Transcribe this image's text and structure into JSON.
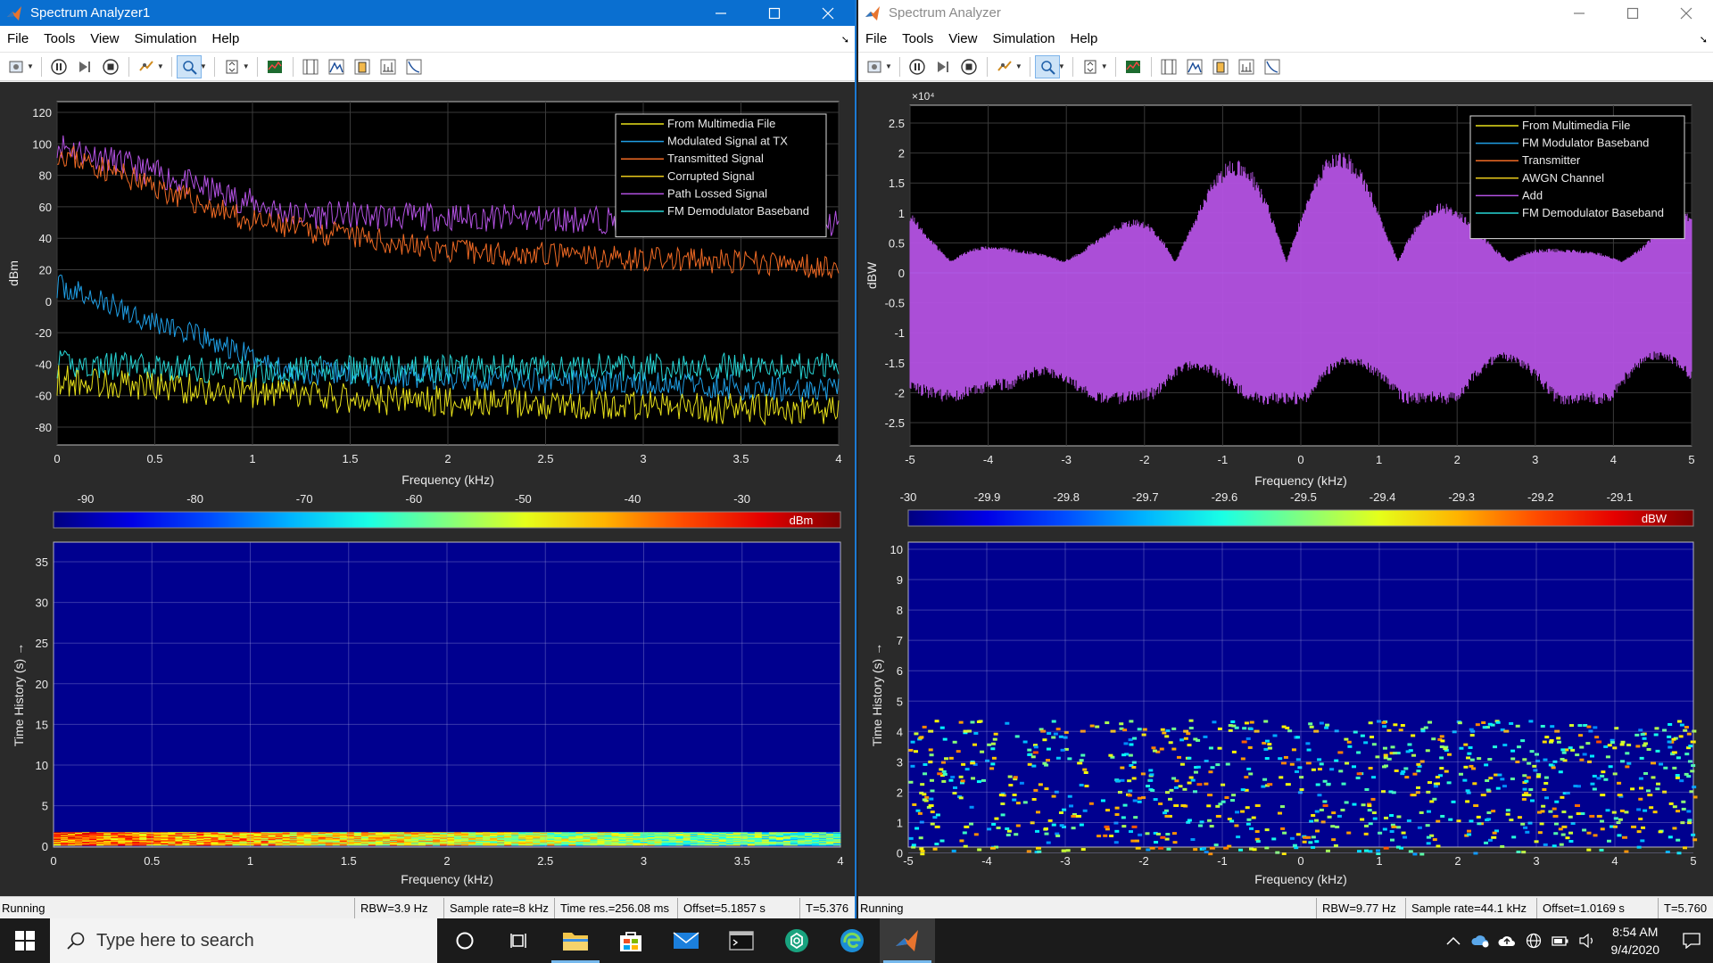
{
  "windows": [
    {
      "title": "Spectrum Analyzer1",
      "menu": [
        "File",
        "Tools",
        "View",
        "Simulation",
        "Help"
      ],
      "spectrum": {
        "ylabel": "dBm",
        "xlabel": "Frequency (kHz)",
        "yticks": [
          "120",
          "100",
          "80",
          "60",
          "40",
          "20",
          "0",
          "-20",
          "-40",
          "-60",
          "-80"
        ],
        "xticks": [
          "0",
          "0.5",
          "1",
          "1.5",
          "2",
          "2.5",
          "3",
          "3.5",
          "4"
        ],
        "legend": [
          {
            "name": "From Multimedia File",
            "color": "#e7e01a"
          },
          {
            "name": "Modulated Signal at TX",
            "color": "#1f9fe6"
          },
          {
            "name": "Transmitted Signal",
            "color": "#f06a24"
          },
          {
            "name": "Corrupted Signal",
            "color": "#e8c81a"
          },
          {
            "name": "Path Lossed Signal",
            "color": "#b452e3"
          },
          {
            "name": "FM Demodulator Baseband",
            "color": "#27d5d5"
          }
        ]
      },
      "colorbar": {
        "ticks": [
          "-90",
          "-80",
          "-70",
          "-60",
          "-50",
          "-40",
          "-30"
        ],
        "unit": "dBm"
      },
      "spectrogram": {
        "ylabel": "Time History (s) →",
        "xlabel": "Frequency (kHz)",
        "yticks": [
          "35",
          "30",
          "25",
          "20",
          "15",
          "10",
          "5",
          "0"
        ],
        "xticks": [
          "0",
          "0.5",
          "1",
          "1.5",
          "2",
          "2.5",
          "3",
          "3.5",
          "4"
        ]
      },
      "status": {
        "state": "Running",
        "rbw": "RBW=3.9 Hz",
        "sample_rate": "Sample rate=8 kHz",
        "time_res": "Time res.=256.08 ms",
        "offset": "Offset=5.1857 s",
        "time": "T=5.376"
      }
    },
    {
      "title": "Spectrum Analyzer",
      "menu": [
        "File",
        "Tools",
        "View",
        "Simulation",
        "Help"
      ],
      "spectrum": {
        "ylabel": "dBW",
        "xlabel": "Frequency (kHz)",
        "exponent": "×10⁴",
        "yticks": [
          "2.5",
          "2",
          "1.5",
          "1",
          "0.5",
          "0",
          "-0.5",
          "-1",
          "-1.5",
          "-2",
          "-2.5"
        ],
        "xticks": [
          "-5",
          "-4",
          "-3",
          "-2",
          "-1",
          "0",
          "1",
          "2",
          "3",
          "4",
          "5"
        ],
        "legend": [
          {
            "name": "From Multimedia File",
            "color": "#e7e01a"
          },
          {
            "name": "FM Modulator Baseband",
            "color": "#1f9fe6"
          },
          {
            "name": "Transmitter",
            "color": "#f06a24"
          },
          {
            "name": "AWGN Channel",
            "color": "#e8c81a"
          },
          {
            "name": "Add",
            "color": "#b452e3"
          },
          {
            "name": "FM Demodulator Baseband",
            "color": "#27d5d5"
          }
        ]
      },
      "colorbar": {
        "ticks": [
          "-30",
          "-29.9",
          "-29.8",
          "-29.7",
          "-29.6",
          "-29.5",
          "-29.4",
          "-29.3",
          "-29.2",
          "-29.1"
        ],
        "unit": "dBW"
      },
      "spectrogram": {
        "ylabel": "Time History (s) →",
        "xlabel": "Frequency (kHz)",
        "yticks": [
          "10",
          "9",
          "8",
          "7",
          "6",
          "5",
          "4",
          "3",
          "2",
          "1",
          "0"
        ],
        "xticks": [
          "-5",
          "-4",
          "-3",
          "-2",
          "-1",
          "0",
          "1",
          "2",
          "3",
          "4",
          "5"
        ]
      },
      "status": {
        "state": "Running",
        "rbw": "RBW=9.77 Hz",
        "sample_rate": "Sample rate=44.1 kHz",
        "offset": "Offset=1.0169 s",
        "time": "T=5.760"
      }
    }
  ],
  "taskbar": {
    "search_placeholder": "Type here to search",
    "time": "8:54 AM",
    "date": "9/4/2020"
  }
}
